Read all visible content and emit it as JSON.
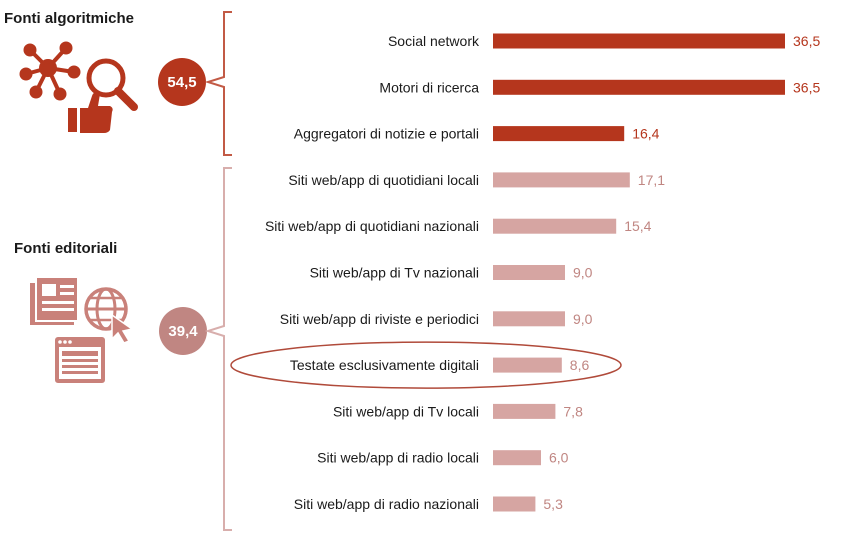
{
  "groups": {
    "algoritmiche": {
      "title": "Fonti algoritmiche",
      "total": "54,5"
    },
    "editoriali": {
      "title": "Fonti editoriali",
      "total": "39,4"
    }
  },
  "colors": {
    "algoritmiche": "#b5361d",
    "editoriali": "#d6a5a2",
    "editoriali_label": "#c08682",
    "bracket_algo": "#c25a45",
    "bracket_edit": "#d8aeac",
    "highlight_ellipse": "#b04a3a"
  },
  "icons": {
    "algoritmiche": [
      "network-icon",
      "search-magnifier-icon",
      "thumbs-up-icon"
    ],
    "editoriali": [
      "newspaper-icon",
      "globe-cursor-icon",
      "webpage-icon"
    ]
  },
  "chart_data": {
    "type": "bar",
    "orientation": "horizontal",
    "xlim": [
      0,
      38
    ],
    "grid": false,
    "highlighted_category": "Testate esclusivamente digitali",
    "categories": [
      "Social network",
      "Motori di ricerca",
      "Aggregatori di notizie e portali",
      "Siti web/app di quotidiani locali",
      "Siti web/app di quotidiani nazionali",
      "Siti web/app di Tv nazionali",
      "Siti web/app di riviste e periodici",
      "Testate esclusivamente digitali",
      "Siti web/app di Tv locali",
      "Siti web/app di radio locali",
      "Siti web/app di radio nazionali"
    ],
    "values": [
      36.5,
      36.5,
      16.4,
      17.1,
      15.4,
      9.0,
      9.0,
      8.6,
      7.8,
      6.0,
      5.3
    ],
    "value_labels": [
      "36,5",
      "36,5",
      "16,4",
      "17,1",
      "15,4",
      "9,0",
      "9,0",
      "8,6",
      "7,8",
      "6,0",
      "5,3"
    ],
    "groups": [
      "algoritmiche",
      "algoritmiche",
      "algoritmiche",
      "editoriali",
      "editoriali",
      "editoriali",
      "editoriali",
      "editoriali",
      "editoriali",
      "editoriali",
      "editoriali"
    ]
  }
}
